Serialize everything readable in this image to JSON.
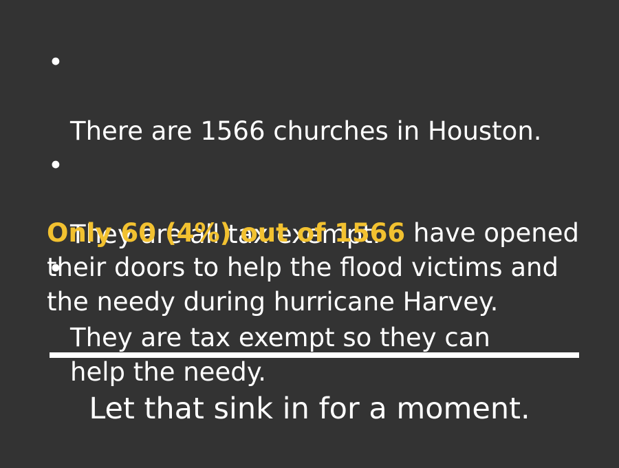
{
  "bullets": [
    {
      "text": "There are 1566 churches in Houston."
    },
    {
      "text": "They are all tax exempt."
    },
    {
      "text": "They are tax exempt so they can\nhelp the needy."
    }
  ],
  "bullet_glyph": "•",
  "paragraph": {
    "highlight": "Only 60 (4%) out of 1566",
    "rest": " have opened their doors to help the flood victims and the needy during hurricane Harvey.",
    "highlight_color": "#f2c130"
  },
  "closing": "Let that sink in for a moment.",
  "colors": {
    "background": "#333333",
    "text": "#ffffff",
    "divider": "#ffffff"
  }
}
